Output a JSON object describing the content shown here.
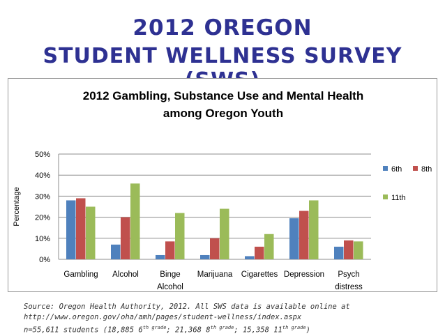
{
  "header": {
    "line1": "2012 OREGON",
    "line2": "STUDENT WELLNESS SURVEY (SWS)"
  },
  "chart_data": {
    "type": "bar",
    "title_line1": "2012 Gambling, Substance Use and Mental Health",
    "title_line2": "among Oregon Youth",
    "ylabel": "Percentage",
    "xlabel": "",
    "ylim": [
      0,
      50
    ],
    "yticks": [
      "0%",
      "10%",
      "20%",
      "30%",
      "40%",
      "50%"
    ],
    "ytick_values": [
      0,
      10,
      20,
      30,
      40,
      50
    ],
    "grid": true,
    "legend_position": "right",
    "categories": [
      [
        "Gambling"
      ],
      [
        "Alcohol"
      ],
      [
        "Binge",
        "Alcohol"
      ],
      [
        "Marijuana"
      ],
      [
        "Cigarettes"
      ],
      [
        "Depression"
      ],
      [
        "Psych",
        "distress"
      ]
    ],
    "series": [
      {
        "name": "6th",
        "color": "#4f81bd",
        "values": [
          28,
          7,
          2,
          2,
          1.5,
          19.5,
          6
        ]
      },
      {
        "name": "8th",
        "color": "#c0504d",
        "values": [
          29,
          20,
          8.5,
          10,
          6,
          23,
          9
        ]
      },
      {
        "name": "11th",
        "color": "#9bbb59",
        "values": [
          25,
          36,
          22,
          24,
          12,
          28,
          8.5
        ]
      }
    ]
  },
  "source": {
    "line1": "Source: Oregon Health Authority, 2012. All SWS data is available online at",
    "line2": "http://www.oregon.gov/oha/amh/pages/student-wellness/index.aspx",
    "line3_prefix": "n=55,611 students (18,885 6",
    "sup1": "th grade",
    "line3_mid1": "; 21,368 8",
    "sup2": "th grade",
    "line3_mid2": "; 15,358 11",
    "sup3": "th grade",
    "line3_suffix": ")"
  }
}
